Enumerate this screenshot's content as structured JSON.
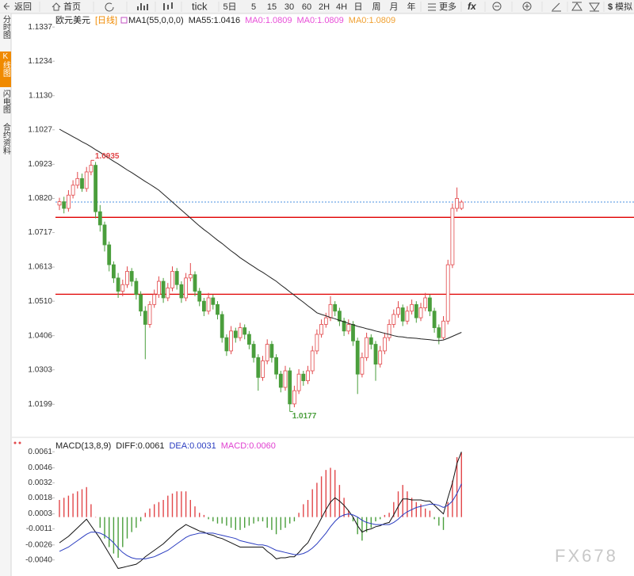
{
  "toolbar": {
    "back": "返回",
    "home": "首页",
    "tick": "tick",
    "periods": [
      "5日",
      "5",
      "15",
      "30",
      "60",
      "2H",
      "4H",
      "日",
      "周",
      "月",
      "年"
    ],
    "more": "更多",
    "formula": "fx",
    "simulate_icon": "$",
    "simulate": "模拟"
  },
  "sidebar": [
    "分时图",
    "K线图",
    "闪电图",
    "合约资料"
  ],
  "watermark": "FX678",
  "chart_data": [
    {
      "type": "candlestick",
      "title": "欧元美元",
      "period": "[日线]",
      "period_color": "#f08a00",
      "indicator_labels": [
        {
          "text": "MA1(55,0,0,0)",
          "color": "#222222"
        },
        {
          "text": "MA55:1.0416",
          "color": "#222222"
        },
        {
          "text": "MA0:1.0809",
          "color": "#e84fd8"
        },
        {
          "text": "MA0:1.0809",
          "color": "#e84fd8"
        },
        {
          "text": "MA0:1.0809",
          "color": "#f0a030"
        }
      ],
      "up_color": "#e2474a",
      "down_color": "#4a9e3c",
      "open": [
        1.08,
        1.081,
        1.079,
        1.083,
        1.086,
        1.088,
        1.085,
        1.09,
        1.092,
        1.078,
        1.074,
        1.068,
        1.062,
        1.058,
        1.054,
        1.056,
        1.06,
        1.057,
        1.053,
        1.048,
        1.044,
        1.05,
        1.053,
        1.057,
        1.052,
        1.055,
        1.06,
        1.056,
        1.052,
        1.058,
        1.059,
        1.054,
        1.051,
        1.048,
        1.052,
        1.05,
        1.047,
        1.04,
        1.036,
        1.042,
        1.04,
        1.043,
        1.041,
        1.038,
        1.034,
        1.028,
        1.033,
        1.038,
        1.034,
        1.029,
        1.025,
        1.03,
        1.02,
        1.024,
        1.029,
        1.027,
        1.03,
        1.036,
        1.041,
        1.044,
        1.046,
        1.05,
        1.048,
        1.045,
        1.042,
        1.044,
        1.039,
        1.029,
        1.034,
        1.04,
        1.038,
        1.032,
        1.036,
        1.04,
        1.044,
        1.047,
        1.049,
        1.045,
        1.048,
        1.05,
        1.046,
        1.049,
        1.052,
        1.048,
        1.043,
        1.04,
        1.045,
        1.062,
        1.079,
        1.079
      ],
      "high": [
        1.0822,
        1.0825,
        1.0845,
        1.0875,
        1.09,
        1.0895,
        1.0915,
        1.0935,
        1.093,
        1.08,
        1.075,
        1.069,
        1.063,
        1.0595,
        1.0575,
        1.0615,
        1.061,
        1.058,
        1.054,
        1.0495,
        1.051,
        1.0545,
        1.0585,
        1.058,
        1.0565,
        1.0615,
        1.061,
        1.057,
        1.0595,
        1.0625,
        1.06,
        1.055,
        1.052,
        1.0535,
        1.053,
        1.051,
        1.048,
        1.041,
        1.0435,
        1.043,
        1.0445,
        1.044,
        1.042,
        1.039,
        1.035,
        1.0345,
        1.0395,
        1.039,
        1.035,
        1.03,
        1.0315,
        1.031,
        1.0255,
        1.0305,
        1.03,
        1.0315,
        1.0375,
        1.0425,
        1.0455,
        1.0475,
        1.0525,
        1.051,
        1.049,
        1.046,
        1.0455,
        1.045,
        1.04,
        1.0355,
        1.0415,
        1.041,
        1.039,
        1.0375,
        1.0415,
        1.0455,
        1.0485,
        1.051,
        1.05,
        1.0495,
        1.0515,
        1.051,
        1.0505,
        1.0535,
        1.053,
        1.049,
        1.044,
        1.0465,
        1.0635,
        1.0805,
        1.0853,
        1.0815
      ],
      "low": [
        1.0785,
        1.0775,
        1.078,
        1.082,
        1.085,
        1.084,
        1.084,
        1.089,
        1.076,
        1.072,
        1.066,
        1.06,
        1.0565,
        1.052,
        1.0525,
        1.055,
        1.0555,
        1.0515,
        1.0465,
        1.0335,
        1.043,
        1.049,
        1.052,
        1.0505,
        1.051,
        1.054,
        1.0545,
        1.0505,
        1.051,
        1.057,
        1.0525,
        1.0495,
        1.0465,
        1.047,
        1.0485,
        1.0455,
        1.0385,
        1.0345,
        1.035,
        1.0385,
        1.039,
        1.0395,
        1.0365,
        1.0325,
        1.024,
        1.027,
        1.032,
        1.0325,
        1.0275,
        1.0235,
        1.024,
        1.0177,
        1.019,
        1.023,
        1.0255,
        1.026,
        1.029,
        1.035,
        1.04,
        1.043,
        1.045,
        1.0465,
        1.0435,
        1.0405,
        1.041,
        1.0375,
        1.023,
        1.028,
        1.033,
        1.0365,
        1.027,
        1.031,
        1.035,
        1.039,
        1.043,
        1.046,
        1.0435,
        1.044,
        1.047,
        1.0445,
        1.045,
        1.048,
        1.0465,
        1.0415,
        1.038,
        1.0395,
        1.044,
        1.061,
        1.078,
        1.0785
      ],
      "close": [
        1.081,
        1.079,
        1.083,
        1.086,
        1.088,
        1.085,
        1.09,
        1.092,
        1.078,
        1.074,
        1.068,
        1.062,
        1.058,
        1.054,
        1.056,
        1.06,
        1.057,
        1.053,
        1.048,
        1.044,
        1.05,
        1.053,
        1.057,
        1.052,
        1.055,
        1.06,
        1.056,
        1.052,
        1.058,
        1.059,
        1.054,
        1.051,
        1.048,
        1.052,
        1.05,
        1.047,
        1.04,
        1.036,
        1.042,
        1.04,
        1.043,
        1.041,
        1.038,
        1.034,
        1.028,
        1.033,
        1.038,
        1.034,
        1.029,
        1.025,
        1.03,
        1.02,
        1.024,
        1.029,
        1.027,
        1.03,
        1.036,
        1.041,
        1.044,
        1.046,
        1.05,
        1.048,
        1.045,
        1.042,
        1.044,
        1.039,
        1.029,
        1.034,
        1.04,
        1.038,
        1.032,
        1.036,
        1.04,
        1.044,
        1.047,
        1.049,
        1.045,
        1.048,
        1.05,
        1.046,
        1.049,
        1.052,
        1.048,
        1.043,
        1.04,
        1.045,
        1.062,
        1.079,
        1.082,
        1.0809
      ],
      "ma55": {
        "color": "#222222",
        "values": [
          1.1029,
          1.1021,
          1.1014,
          1.1006,
          1.0999,
          1.0991,
          1.0984,
          1.0976,
          1.0967,
          1.0959,
          1.095,
          1.0941,
          1.0932,
          1.0924,
          1.0915,
          1.0906,
          1.0898,
          1.0889,
          1.088,
          1.0871,
          1.0863,
          1.0854,
          1.0845,
          1.0833,
          1.0821,
          1.0809,
          1.0797,
          1.0785,
          1.0773,
          1.0761,
          1.0749,
          1.0737,
          1.0726,
          1.0716,
          1.0705,
          1.0694,
          1.0684,
          1.0673,
          1.0662,
          1.0652,
          1.0641,
          1.0632,
          1.0623,
          1.0614,
          1.0605,
          1.0597,
          1.0588,
          1.0579,
          1.057,
          1.0559,
          1.0549,
          1.0538,
          1.0528,
          1.0517,
          1.0507,
          1.0496,
          1.0486,
          1.0475,
          1.047,
          1.0466,
          1.0461,
          1.0457,
          1.0452,
          1.0448,
          1.0443,
          1.0439,
          1.0434,
          1.0431,
          1.0427,
          1.0424,
          1.042,
          1.0417,
          1.0413,
          1.041,
          1.0406,
          1.0403,
          1.0402,
          1.04,
          1.0399,
          1.0398,
          1.0396,
          1.0395,
          1.0394,
          1.0392,
          1.0391,
          1.0393,
          1.0398,
          1.0404,
          1.041,
          1.0416
        ]
      },
      "hlines": [
        {
          "value": 1.0763,
          "color": "#e00000"
        },
        {
          "value": 1.0531,
          "color": "#e00000"
        }
      ],
      "current_line": {
        "value": 1.0809,
        "color": "#4a90e2"
      },
      "ylim": [
        1.0116,
        1.1366
      ],
      "yticks": [
        1.1337,
        1.1234,
        {
          "value": 1.113,
          "label": "1.1130"
        },
        1.1027,
        1.0923,
        {
          "value": 1.082,
          "label": "1.0820"
        },
        1.0717,
        1.0613,
        {
          "value": 1.051,
          "label": "1.0510"
        },
        1.0406,
        1.0303,
        1.0199
      ]
    },
    {
      "type": "macd",
      "title": "MACD(13,8,9)",
      "legend": [
        {
          "text": "DIFF:0.0061",
          "color": "#222222"
        },
        {
          "text": "DEA:0.0031",
          "color": "#2a3cc0"
        },
        {
          "text": "MACD:0.0060",
          "color": "#e040d0"
        }
      ],
      "up_color": "#e2474a",
      "down_color": "#4a9e3c",
      "series": [
        {
          "name": "DIFF",
          "color": "#111111",
          "values": [
            -0.0024,
            -0.0021,
            -0.0018,
            -0.0014,
            -0.001,
            -0.0006,
            -0.0002,
            -0.0008,
            -0.0014,
            -0.002,
            -0.0027,
            -0.0034,
            -0.0041,
            -0.0048,
            -0.0047,
            -0.0046,
            -0.0045,
            -0.0044,
            -0.0041,
            -0.0037,
            -0.0034,
            -0.0031,
            -0.0028,
            -0.0025,
            -0.0021,
            -0.0017,
            -0.0013,
            -0.001,
            -0.0007,
            -0.0009,
            -0.0011,
            -0.0013,
            -0.0014,
            -0.0016,
            -0.0017,
            -0.0019,
            -0.002,
            -0.0022,
            -0.0024,
            -0.0026,
            -0.0028,
            -0.0028,
            -0.0028,
            -0.0028,
            -0.0028,
            -0.0028,
            -0.0032,
            -0.0035,
            -0.0039,
            -0.0038,
            -0.0038,
            -0.0037,
            -0.0037,
            -0.0033,
            -0.0028,
            -0.0024,
            -0.0016,
            -0.0009,
            -0.0001,
            0.0007,
            0.0014,
            0.0018,
            0.0015,
            0.0011,
            0.0006,
            0.0,
            -0.0008,
            -0.0014,
            -0.0012,
            -0.0011,
            -0.0009,
            -0.0008,
            -0.0006,
            -0.0005,
            0.0002,
            0.001,
            0.0017,
            0.0017,
            0.0016,
            0.0016,
            0.0016,
            0.0015,
            0.0015,
            0.0011,
            0.0007,
            0.0003,
            0.0018,
            0.0032,
            0.005,
            0.0061
          ]
        },
        {
          "name": "DEA",
          "color": "#2a3cc0",
          "values": [
            -0.0032,
            -0.003,
            -0.0028,
            -0.0025,
            -0.0022,
            -0.0019,
            -0.0016,
            -0.0014,
            -0.0014,
            -0.0015,
            -0.0017,
            -0.002,
            -0.0024,
            -0.0029,
            -0.0033,
            -0.0036,
            -0.0038,
            -0.0039,
            -0.0039,
            -0.0039,
            -0.0038,
            -0.0037,
            -0.0035,
            -0.0033,
            -0.0031,
            -0.0028,
            -0.0025,
            -0.0022,
            -0.0019,
            -0.0017,
            -0.0016,
            -0.0015,
            -0.0015,
            -0.0015,
            -0.0015,
            -0.0016,
            -0.0017,
            -0.0018,
            -0.0019,
            -0.002,
            -0.0022,
            -0.0023,
            -0.0024,
            -0.0025,
            -0.0026,
            -0.0026,
            -0.0027,
            -0.0029,
            -0.0031,
            -0.0032,
            -0.0033,
            -0.0034,
            -0.0035,
            -0.0035,
            -0.0034,
            -0.0032,
            -0.0029,
            -0.0025,
            -0.002,
            -0.0015,
            -0.0009,
            -0.0004,
            0.0,
            0.0002,
            0.0003,
            0.0002,
            0.0,
            -0.0003,
            -0.0005,
            -0.0006,
            -0.0007,
            -0.0007,
            -0.0007,
            -0.0007,
            -0.0005,
            -0.0002,
            0.0002,
            0.0005,
            0.0007,
            0.0009,
            0.001,
            0.0011,
            0.0012,
            0.0012,
            0.0011,
            0.0009,
            0.0011,
            0.0015,
            0.0022,
            0.0031
          ]
        },
        {
          "name": "MACD",
          "values": [
            0.0016,
            0.0018,
            0.002,
            0.0022,
            0.0024,
            0.0026,
            0.0028,
            0.0012,
            0.0,
            -0.001,
            -0.002,
            -0.0028,
            -0.0034,
            -0.0038,
            -0.0028,
            -0.002,
            -0.0014,
            -0.001,
            -0.0004,
            0.0004,
            0.0008,
            0.0012,
            0.0014,
            0.0016,
            0.002,
            0.0022,
            0.0024,
            0.0024,
            0.0024,
            0.0016,
            0.001,
            0.0004,
            0.0002,
            -0.0002,
            -0.0004,
            -0.0006,
            -0.0006,
            -0.0008,
            -0.001,
            -0.0012,
            -0.0012,
            -0.001,
            -0.0008,
            -0.0006,
            -0.0004,
            -0.0004,
            -0.001,
            -0.0012,
            -0.0016,
            -0.0012,
            -0.001,
            -0.0006,
            -0.0004,
            0.0004,
            0.0012,
            0.0016,
            0.0026,
            0.0032,
            0.0038,
            0.0044,
            0.0046,
            0.0044,
            0.003,
            0.0018,
            0.0006,
            -0.0004,
            -0.0016,
            -0.0022,
            -0.0014,
            -0.001,
            -0.0004,
            -0.0002,
            0.0002,
            0.0004,
            0.0014,
            0.0024,
            0.003,
            0.0024,
            0.0018,
            0.0014,
            0.0012,
            0.0008,
            0.0006,
            -0.0002,
            -0.0008,
            -0.0012,
            0.0014,
            0.0034,
            0.0056,
            0.006
          ]
        }
      ],
      "ylim": [
        -0.0055,
        0.007
      ],
      "yticks": [
        0.0061,
        0.0046,
        0.0032,
        0.0018,
        0.0003,
        -0.0011,
        -0.0026,
        {
          "value": -0.004,
          "label": "-0.0040"
        }
      ]
    }
  ]
}
